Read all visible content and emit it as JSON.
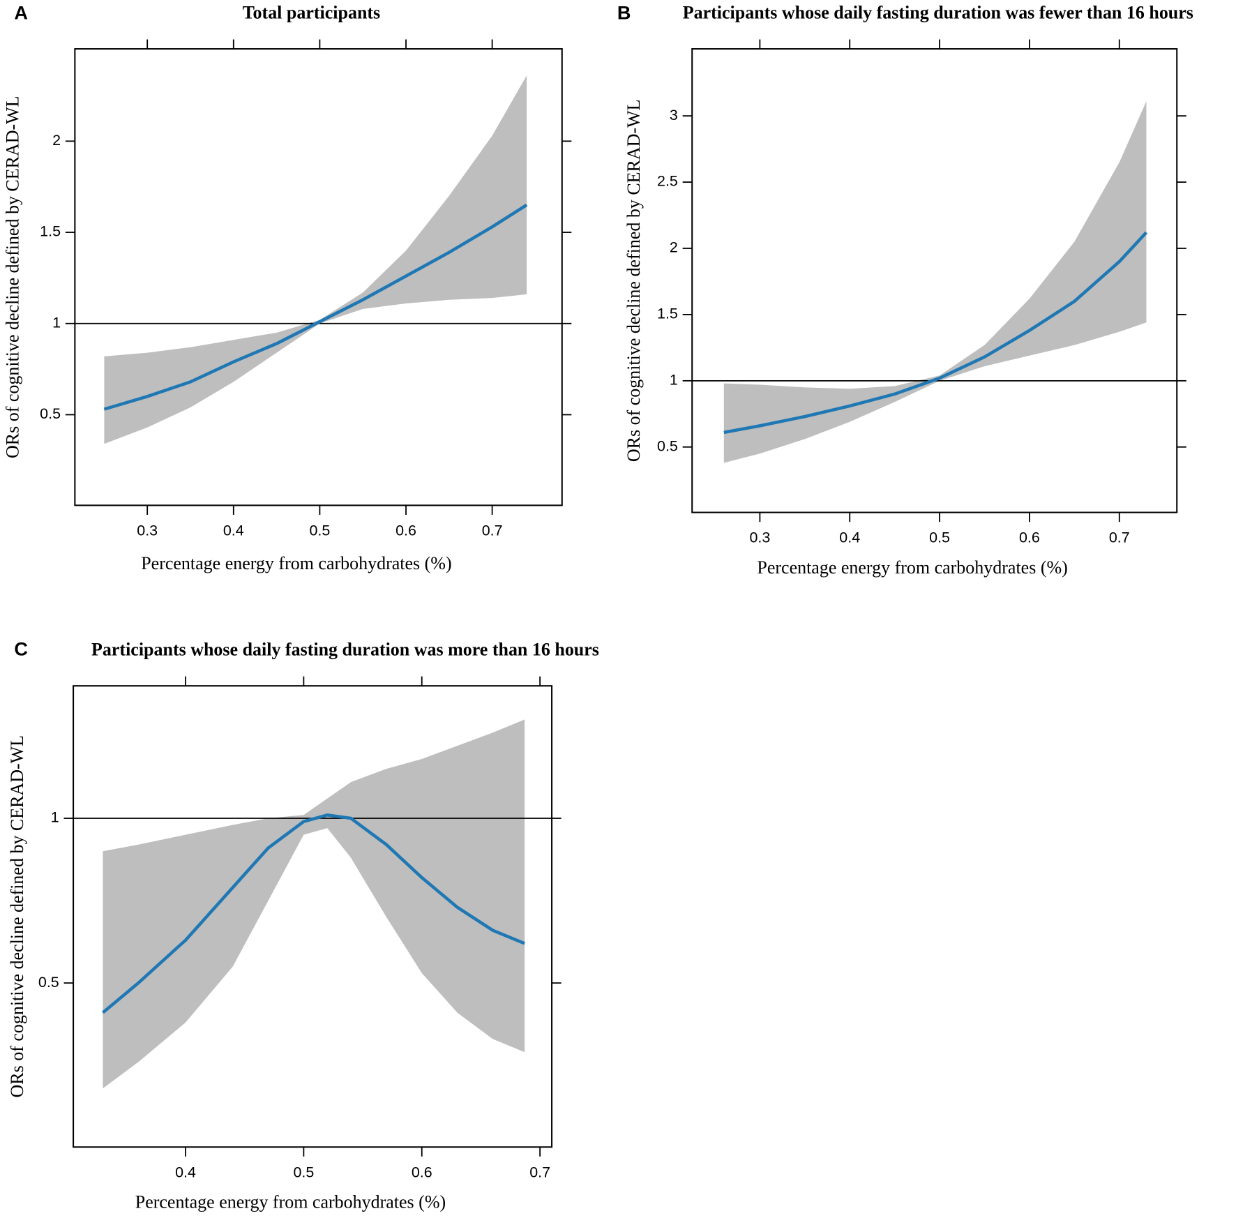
{
  "chart_data": [
    {
      "type": "line",
      "panel": "A",
      "title": "Total  participants",
      "x_label": "Percentage energy from carbohydrates (%)",
      "y_label": "ORs of cognitive decline defined by CERAD-WL",
      "xlim": [
        0.216,
        0.781
      ],
      "ylim": [
        0.003,
        2.506
      ],
      "xticks": [
        0.3,
        0.4,
        0.5,
        0.6,
        0.7
      ],
      "yticks": [
        0.5,
        1.0,
        1.5,
        2.0
      ],
      "reference_line": 1.0,
      "color": "#1f78b4",
      "band_color": "#bebebe",
      "x": [
        0.25,
        0.3,
        0.35,
        0.4,
        0.45,
        0.5,
        0.55,
        0.6,
        0.65,
        0.7,
        0.74
      ],
      "values": [
        0.53,
        0.6,
        0.68,
        0.79,
        0.89,
        1.01,
        1.13,
        1.26,
        1.39,
        1.53,
        1.65
      ],
      "lower": [
        0.34,
        0.43,
        0.54,
        0.68,
        0.84,
        1.0,
        1.08,
        1.11,
        1.13,
        1.14,
        1.16
      ],
      "upper": [
        0.82,
        0.84,
        0.87,
        0.91,
        0.95,
        1.02,
        1.17,
        1.4,
        1.7,
        2.03,
        2.36
      ]
    },
    {
      "type": "line",
      "panel": "B",
      "title": "Participants whose daily fasting duration was fewer than 16 hours",
      "x_label": "Percentage energy from carbohydrates (%)",
      "y_label": "ORs of cognitive decline defined by CERAD-WL",
      "xlim": [
        0.2246,
        0.764
      ],
      "ylim": [
        0.006,
        3.506
      ],
      "xticks": [
        0.3,
        0.4,
        0.5,
        0.6,
        0.7
      ],
      "yticks": [
        0.5,
        1.0,
        1.5,
        2.0,
        2.5,
        3.0
      ],
      "reference_line": 1.0,
      "color": "#1f78b4",
      "band_color": "#bebebe",
      "x": [
        0.26,
        0.3,
        0.35,
        0.4,
        0.45,
        0.5,
        0.55,
        0.6,
        0.65,
        0.7,
        0.73
      ],
      "values": [
        0.61,
        0.66,
        0.73,
        0.81,
        0.9,
        1.02,
        1.18,
        1.38,
        1.6,
        1.9,
        2.12
      ],
      "lower": [
        0.38,
        0.45,
        0.56,
        0.69,
        0.84,
        1.0,
        1.11,
        1.19,
        1.27,
        1.37,
        1.44
      ],
      "upper": [
        0.98,
        0.97,
        0.95,
        0.94,
        0.96,
        1.04,
        1.27,
        1.62,
        2.05,
        2.65,
        3.11
      ]
    },
    {
      "type": "line",
      "panel": "C",
      "title": "Participants whose daily fasting duration was more than 16 hours",
      "x_label": "Percentage energy from carbohydrates (%)",
      "y_label": "ORs of cognitive decline defined by CERAD-WL",
      "xlim": [
        0.305,
        0.71
      ],
      "ylim": [
        0.002,
        1.402
      ],
      "xticks": [
        0.4,
        0.5,
        0.6,
        0.7
      ],
      "yticks": [
        0.5,
        1.0
      ],
      "reference_line": 1.0,
      "color": "#1f78b4",
      "band_color": "#bebebe",
      "x": [
        0.33,
        0.36,
        0.4,
        0.44,
        0.47,
        0.5,
        0.52,
        0.54,
        0.57,
        0.6,
        0.63,
        0.66,
        0.687
      ],
      "values": [
        0.41,
        0.5,
        0.63,
        0.79,
        0.91,
        0.99,
        1.01,
        1.0,
        0.92,
        0.82,
        0.73,
        0.66,
        0.62
      ],
      "lower": [
        0.18,
        0.26,
        0.38,
        0.55,
        0.75,
        0.95,
        0.97,
        0.88,
        0.7,
        0.53,
        0.41,
        0.33,
        0.29
      ],
      "upper": [
        0.9,
        0.92,
        0.95,
        0.98,
        1.0,
        1.01,
        1.06,
        1.11,
        1.15,
        1.18,
        1.22,
        1.26,
        1.3
      ]
    }
  ]
}
